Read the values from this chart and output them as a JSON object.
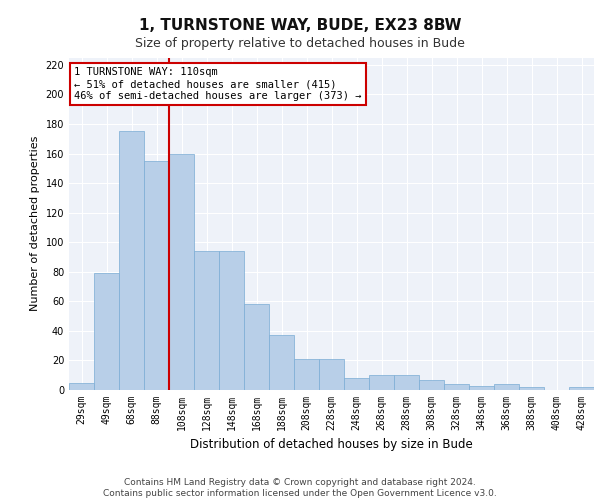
{
  "title": "1, TURNSTONE WAY, BUDE, EX23 8BW",
  "subtitle": "Size of property relative to detached houses in Bude",
  "xlabel": "Distribution of detached houses by size in Bude",
  "ylabel": "Number of detached properties",
  "bar_labels": [
    "29sqm",
    "49sqm",
    "68sqm",
    "88sqm",
    "108sqm",
    "128sqm",
    "148sqm",
    "168sqm",
    "188sqm",
    "208sqm",
    "228sqm",
    "248sqm",
    "268sqm",
    "288sqm",
    "308sqm",
    "328sqm",
    "348sqm",
    "368sqm",
    "388sqm",
    "408sqm",
    "428sqm"
  ],
  "bar_values": [
    5,
    79,
    175,
    155,
    160,
    94,
    94,
    58,
    37,
    21,
    21,
    8,
    10,
    10,
    7,
    4,
    3,
    4,
    2,
    0,
    2
  ],
  "bar_color": "#b8cfe8",
  "bar_edge_color": "#7aacd4",
  "vline_x_index": 4,
  "vline_color": "#cc0000",
  "annotation_text": "1 TURNSTONE WAY: 110sqm\n← 51% of detached houses are smaller (415)\n46% of semi-detached houses are larger (373) →",
  "annotation_box_color": "#ffffff",
  "annotation_box_edge_color": "#cc0000",
  "ylim": [
    0,
    225
  ],
  "yticks": [
    0,
    20,
    40,
    60,
    80,
    100,
    120,
    140,
    160,
    180,
    200,
    220
  ],
  "footer_text": "Contains HM Land Registry data © Crown copyright and database right 2024.\nContains public sector information licensed under the Open Government Licence v3.0.",
  "bg_color": "#eef2f9",
  "grid_color": "#ffffff",
  "title_fontsize": 11,
  "subtitle_fontsize": 9,
  "ylabel_fontsize": 8,
  "xlabel_fontsize": 8.5,
  "tick_fontsize": 7,
  "footer_fontsize": 6.5,
  "annot_fontsize": 7.5
}
